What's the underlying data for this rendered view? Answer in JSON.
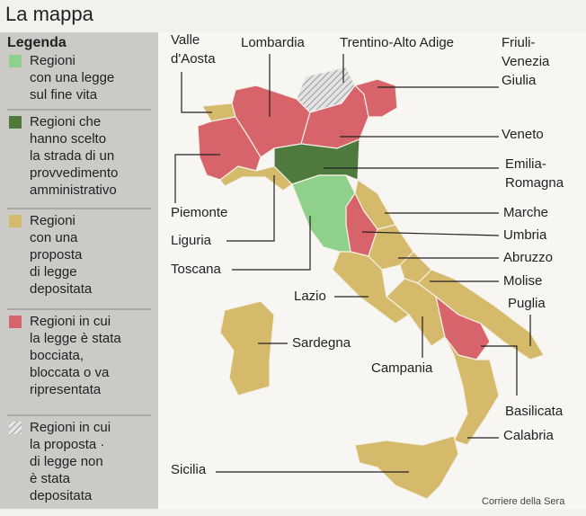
{
  "header": {
    "title": "La mappa"
  },
  "legend": {
    "title": "Legenda",
    "items": [
      {
        "color": "#8fd18a",
        "lines": [
          "Regioni",
          "con una legge",
          "sul fine vita"
        ]
      },
      {
        "color": "#4f7a3e",
        "lines": [
          "Regioni che",
          "hanno scelto",
          "la strada di un",
          "provvedimento",
          "amministrativo"
        ]
      },
      {
        "color": "#d6ba6c",
        "lines": [
          "Regioni",
          "con una",
          "proposta",
          "di legge",
          "depositata"
        ]
      },
      {
        "color": "#d8646b",
        "lines": [
          "Regioni in cui",
          "la legge è stata",
          "bocciata,",
          "bloccata o va",
          "ripresentata"
        ]
      },
      {
        "color": "hatch",
        "lines": [
          "Regioni in cui",
          "la proposta ·",
          "di legge non",
          "è stata",
          "depositata"
        ]
      }
    ]
  },
  "map": {
    "regions": [
      {
        "lines": [
          "Valle",
          "d'Aosta"
        ],
        "color": "#d6ba6c"
      },
      {
        "lines": [
          "Lombardia"
        ],
        "color": "#d8646b"
      },
      {
        "lines": [
          "Trentino-Alto Adige"
        ],
        "color": "hatch"
      },
      {
        "lines": [
          "Friuli-",
          "Venezia",
          "Giulia"
        ],
        "color": "#d8646b"
      },
      {
        "lines": [
          "Veneto"
        ],
        "color": "#d8646b"
      },
      {
        "lines": [
          "Emilia-",
          "Romagna"
        ],
        "color": "#4f7a3e"
      },
      {
        "lines": [
          "Piemonte"
        ],
        "color": "#d8646b"
      },
      {
        "lines": [
          "Marche"
        ],
        "color": "#d6ba6c"
      },
      {
        "lines": [
          "Liguria"
        ],
        "color": "#d6ba6c"
      },
      {
        "lines": [
          "Umbria"
        ],
        "color": "#d8646b"
      },
      {
        "lines": [
          "Toscana"
        ],
        "color": "#8fd18a"
      },
      {
        "lines": [
          "Abruzzo"
        ],
        "color": "#d6ba6c"
      },
      {
        "lines": [
          "Lazio"
        ],
        "color": "#d6ba6c"
      },
      {
        "lines": [
          "Molise"
        ],
        "color": "#d6ba6c"
      },
      {
        "lines": [
          "Puglia"
        ],
        "color": "#d6ba6c"
      },
      {
        "lines": [
          "Sardegna"
        ],
        "color": "#d6ba6c"
      },
      {
        "lines": [
          "Campania"
        ],
        "color": "#d6ba6c"
      },
      {
        "lines": [
          "Basilicata"
        ],
        "color": "#d8646b"
      },
      {
        "lines": [
          "Calabria"
        ],
        "color": "#d6ba6c"
      },
      {
        "lines": [
          "Sicilia"
        ],
        "color": "#d6ba6c"
      }
    ]
  },
  "footer": {
    "credit": "Corriere della Sera"
  }
}
